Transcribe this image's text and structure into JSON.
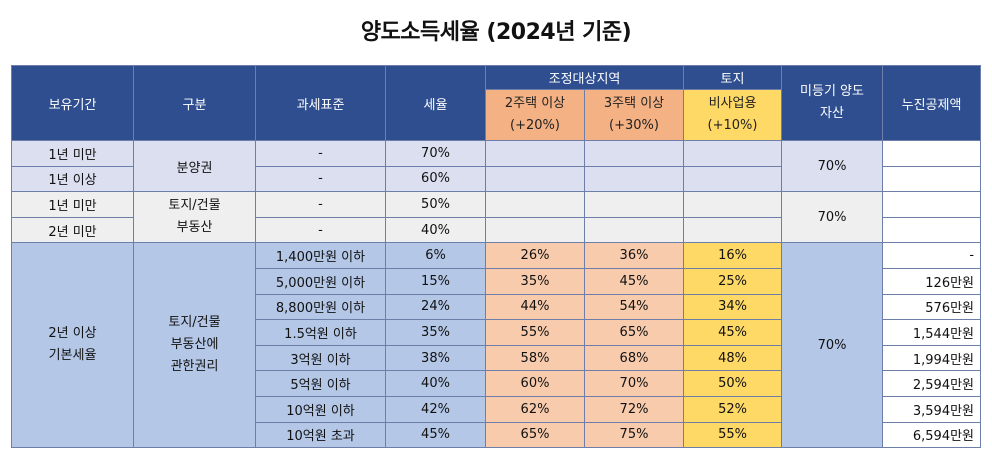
{
  "title": "양도소득세율 (2024년 기준)",
  "headers": {
    "holding_period": "보유기간",
    "category": "구분",
    "tax_base": "과세표준",
    "tax_rate": "세율",
    "adjusted_area": "조정대상지역",
    "land": "토지",
    "unregistered": "미등기 양도자산",
    "progressive_deduction": "누진공제액",
    "two_houses": "2주택 이상",
    "two_houses_add": "(+20%)",
    "three_houses": "3주택 이상",
    "three_houses_add": "(+30%)",
    "non_business": "비사업용",
    "non_business_add": "(+10%)"
  },
  "short_term": {
    "rows": [
      {
        "period": "1년 미만",
        "tax_base": "-",
        "rate": "70%"
      },
      {
        "period": "1년 이상",
        "tax_base": "-",
        "rate": "60%"
      },
      {
        "period": "1년 미만",
        "tax_base": "-",
        "rate": "50%"
      },
      {
        "period": "2년 미만",
        "tax_base": "-",
        "rate": "40%"
      }
    ],
    "presale_right": "분양권",
    "land_building_line1": "토지/건물",
    "land_building_line2": "부동산",
    "unregistered_rate_1": "70%",
    "unregistered_rate_2": "70%"
  },
  "basic": {
    "period_line1": "2년 이상",
    "period_line2": "기본세율",
    "category_line1": "토지/건물",
    "category_line2": "부동산에",
    "category_line3": "관한권리",
    "unregistered_rate": "70%",
    "rows": [
      {
        "tax_base": "1,400만원 이하",
        "rate": "6%",
        "two": "26%",
        "three": "36%",
        "nonbiz": "16%",
        "deduction": "-"
      },
      {
        "tax_base": "5,000만원 이하",
        "rate": "15%",
        "two": "35%",
        "three": "45%",
        "nonbiz": "25%",
        "deduction": "126만원"
      },
      {
        "tax_base": "8,800만원 이하",
        "rate": "24%",
        "two": "44%",
        "three": "54%",
        "nonbiz": "34%",
        "deduction": "576만원"
      },
      {
        "tax_base": "1.5억원 이하",
        "rate": "35%",
        "two": "55%",
        "three": "65%",
        "nonbiz": "45%",
        "deduction": "1,544만원"
      },
      {
        "tax_base": "3억원 이하",
        "rate": "38%",
        "two": "58%",
        "three": "68%",
        "nonbiz": "48%",
        "deduction": "1,994만원"
      },
      {
        "tax_base": "5억원 이하",
        "rate": "40%",
        "two": "60%",
        "three": "70%",
        "nonbiz": "50%",
        "deduction": "2,594만원"
      },
      {
        "tax_base": "10억원 이하",
        "rate": "42%",
        "two": "62%",
        "three": "72%",
        "nonbiz": "52%",
        "deduction": "3,594만원"
      },
      {
        "tax_base": "10억원 초과",
        "rate": "45%",
        "two": "65%",
        "three": "75%",
        "nonbiz": "55%",
        "deduction": "6,594만원"
      }
    ]
  },
  "colors": {
    "header_navy": "#2f4e8f",
    "orange": "#f4b183",
    "light_orange": "#f8cbad",
    "yellow": "#ffd966",
    "lavender": "#dcdff0",
    "light_gray": "#efefef",
    "light_blue": "#b4c7e7"
  }
}
